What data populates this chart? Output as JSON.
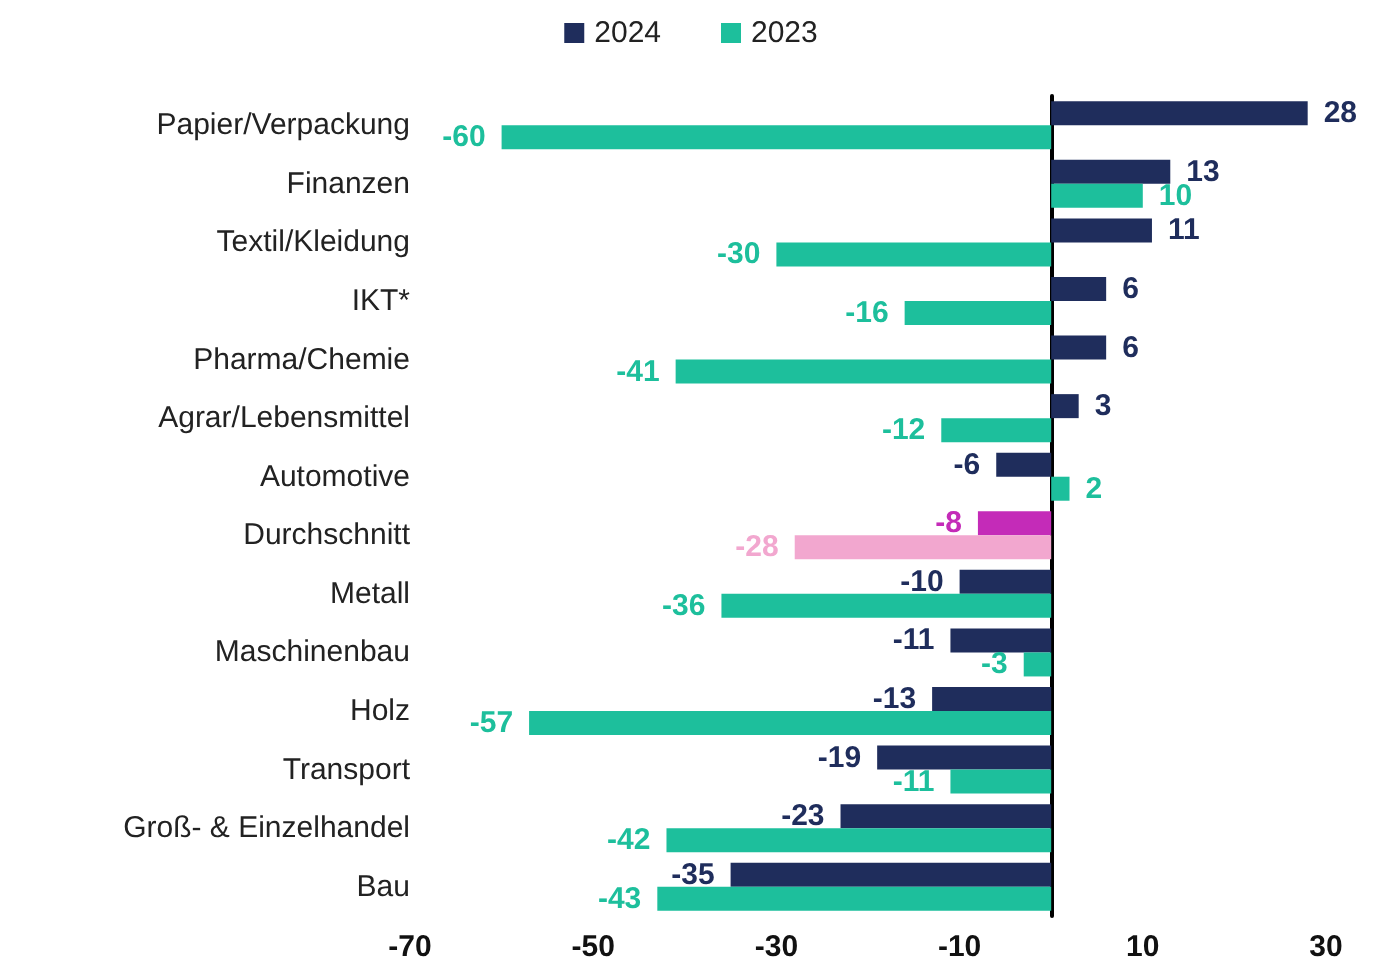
{
  "chart_data": {
    "type": "bar",
    "orientation": "horizontal",
    "categories": [
      "Papier/Verpackung",
      "Finanzen",
      "Textil/Kleidung",
      "IKT*",
      "Pharma/Chemie",
      "Agrar/Lebensmittel",
      "Automotive",
      "Durchschnitt",
      "Metall",
      "Maschinenbau",
      "Holz",
      "Transport",
      "Groß- & Einzelhandel",
      "Bau"
    ],
    "series": [
      {
        "name": "2024",
        "color": "#1f2d5c",
        "colors": [
          "#1f2d5c",
          "#1f2d5c",
          "#1f2d5c",
          "#1f2d5c",
          "#1f2d5c",
          "#1f2d5c",
          "#1f2d5c",
          "#c42bb8",
          "#1f2d5c",
          "#1f2d5c",
          "#1f2d5c",
          "#1f2d5c",
          "#1f2d5c",
          "#1f2d5c"
        ],
        "values": [
          28,
          13,
          11,
          6,
          6,
          3,
          -6,
          -8,
          -10,
          -11,
          -13,
          -19,
          -23,
          -35
        ]
      },
      {
        "name": "2023",
        "color": "#1dbf9c",
        "colors": [
          "#1dbf9c",
          "#1dbf9c",
          "#1dbf9c",
          "#1dbf9c",
          "#1dbf9c",
          "#1dbf9c",
          "#1dbf9c",
          "#f2a7cf",
          "#1dbf9c",
          "#1dbf9c",
          "#1dbf9c",
          "#1dbf9c",
          "#1dbf9c",
          "#1dbf9c"
        ],
        "values": [
          -60,
          10,
          -30,
          -16,
          -41,
          -12,
          2,
          -28,
          -36,
          -3,
          -57,
          -11,
          -42,
          -43
        ]
      }
    ],
    "xlim": [
      -70,
      30
    ],
    "xticks": [
      -70,
      -50,
      -30,
      -10,
      10,
      30
    ],
    "data_labels": true,
    "legend": "top",
    "grid": false
  }
}
